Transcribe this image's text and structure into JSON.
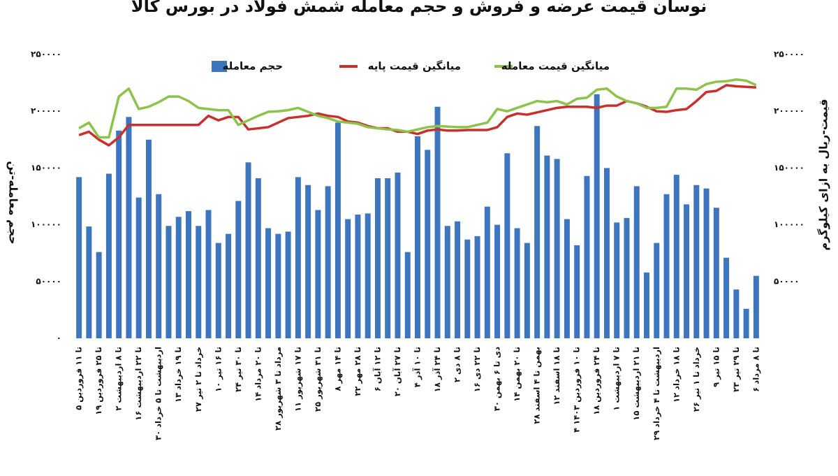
{
  "chart_data": {
    "type": "bar_line",
    "title": "نوسان قیمت عرضه و فروش و حجم معامله شمش فولاد در بورس کالا",
    "ylabel": "حجم معامله-تن",
    "y2label": "قیمت-ریال به ازای کیلوگرم",
    "categories": [
      "۵ تا ۱۱ فروردین",
      null,
      "۱۹ تا ۲۵ فروردین",
      null,
      "۲ تا ۸ اردیبهشت",
      null,
      "۱۶ تا ۲۲ اردیبهشت",
      null,
      "۳۰ اردیبهشت تا ۵ خرداد",
      null,
      "۱۳ تا ۱۹ خرداد",
      null,
      "۲۷ خرداد تا ۲ تیر",
      null,
      "۱۰ تا ۱۶ تیر",
      null,
      "۲۴ تا ۳۰ تیر",
      null,
      "۱۴ تا ۲۰ مرداد",
      null,
      "۲۸ مرداد تا ۳ شهریور",
      null,
      "۱۱ تا ۱۷ شهریور",
      null,
      "۲۵ تا ۳۱ شهریور",
      null,
      "۸ تا ۱۴ مهر",
      null,
      "۲۲ تا ۲۸ مهر",
      null,
      "۶ تا ۱۲ آبان",
      null,
      "۲۰ تا ۲۷ آبان",
      null,
      "۴ تا ۱۰ آذر",
      null,
      "۱۸ تا ۲۴ آذر",
      null,
      "۲ تا ۸ دی",
      null,
      "۱۶ تا ۲۲ دی",
      null,
      "۳۰ دی تا ۶ بهمن",
      null,
      "۱۴ تا ۲۰ بهمن",
      null,
      "۲۸ بهمن تا ۴ اسفند",
      null,
      "۱۲ تا ۱۸ اسفند",
      null,
      "۴ تا ۱۰ فروردین ۱۴۰۳",
      null,
      "۱۸ تا ۲۴ فروردین",
      null,
      "۱ تا ۷ اردیبهشت",
      null,
      "۱۵ تا ۲۱ اردیبهشت",
      null,
      "۲۹ اردیبهشت تا ۴ خرداد",
      null,
      "۱۲ تا ۱۸ خرداد",
      null,
      "۲۶ خرداد تا ۱ تیر",
      null,
      "۹ تا ۱۵ تیر",
      null,
      "۲۳ تا ۲۹ تیر",
      null,
      "۶ تا ۸ مرداد"
    ],
    "series": [
      {
        "name": "حجم معامله",
        "kind": "bar",
        "color": "#3d75bf",
        "values": [
          142000,
          98500,
          76000,
          145000,
          183000,
          195000,
          124000,
          175000,
          127000,
          99000,
          107000,
          112000,
          99000,
          113000,
          84000,
          92000,
          121000,
          155000,
          141000,
          97000,
          92000,
          94000,
          142000,
          135000,
          113000,
          134000,
          190000,
          105000,
          109000,
          110000,
          141000,
          141000,
          146000,
          76000,
          178000,
          166000,
          204000,
          99000,
          103000,
          87000,
          90000,
          116000,
          100000,
          163000,
          97000,
          84000,
          187000,
          161000,
          158000,
          105000,
          82000,
          143000,
          215000,
          150000,
          102000,
          106000,
          134000,
          58000,
          84000,
          127000,
          144000,
          118000,
          135000,
          132000,
          115000,
          71000,
          43000,
          26000,
          55000
        ]
      },
      {
        "name": "میانگین قیمت پایه",
        "kind": "line",
        "axis": "y2",
        "color": "#c8312b",
        "values": [
          179000,
          182000,
          175000,
          170000,
          177000,
          188000,
          188000,
          188000,
          188000,
          188000,
          188000,
          188000,
          188000,
          196000,
          192000,
          195000,
          195000,
          184000,
          185000,
          186000,
          190000,
          194000,
          195000,
          196000,
          198000,
          196000,
          195000,
          191000,
          190000,
          187000,
          185000,
          185000,
          182000,
          182000,
          180000,
          183000,
          184000,
          183000,
          183000,
          183500,
          183500,
          183500,
          186000,
          195000,
          198000,
          197000,
          199000,
          201000,
          203000,
          204000,
          204000,
          204000,
          203000,
          205000,
          205000,
          209000,
          207000,
          204000,
          200000,
          199500,
          201000,
          202000,
          209000,
          217000,
          218000,
          223000,
          222000,
          221500,
          221000
        ]
      },
      {
        "name": "میانگین قیمت معامله",
        "kind": "line",
        "axis": "y2",
        "color": "#8dc24b",
        "values": [
          185000,
          190000,
          177000,
          177000,
          213000,
          220000,
          202000,
          204000,
          208000,
          213000,
          213000,
          209000,
          203000,
          202000,
          201000,
          201000,
          188000,
          192000,
          196000,
          199500,
          200000,
          201000,
          203000,
          199500,
          196000,
          194000,
          191000,
          190000,
          189000,
          186000,
          185000,
          184000,
          183500,
          182000,
          184000,
          186000,
          187000,
          186500,
          186000,
          186000,
          188000,
          190000,
          202000,
          200000,
          203000,
          206000,
          209000,
          208000,
          209000,
          206000,
          211000,
          212000,
          219000,
          220000,
          213000,
          209000,
          207000,
          203000,
          203000,
          204000,
          220000,
          220000,
          219000,
          224000,
          226000,
          226500,
          228000,
          227000,
          223000
        ]
      }
    ],
    "ylim": [
      0,
      250000
    ],
    "yticks": [
      {
        "value": 0,
        "label": "۰"
      },
      {
        "value": 50000,
        "label": "۵۰۰۰۰"
      },
      {
        "value": 100000,
        "label": "۱۰۰۰۰۰"
      },
      {
        "value": 150000,
        "label": "۱۵۰۰۰۰"
      },
      {
        "value": 200000,
        "label": "۲۰۰۰۰۰"
      },
      {
        "value": 250000,
        "label": "۲۵۰۰۰۰"
      }
    ],
    "y2lim": [
      0,
      250000
    ],
    "y2ticks": [
      {
        "value": 50000,
        "label": "۵۰۰۰۰"
      },
      {
        "value": 100000,
        "label": "۱۰۰۰۰۰"
      },
      {
        "value": 150000,
        "label": "۱۵۰۰۰۰"
      },
      {
        "value": 200000,
        "label": "۲۰۰۰۰۰"
      },
      {
        "value": 250000,
        "label": "۲۵۰۰۰۰"
      }
    ],
    "grid": false
  }
}
